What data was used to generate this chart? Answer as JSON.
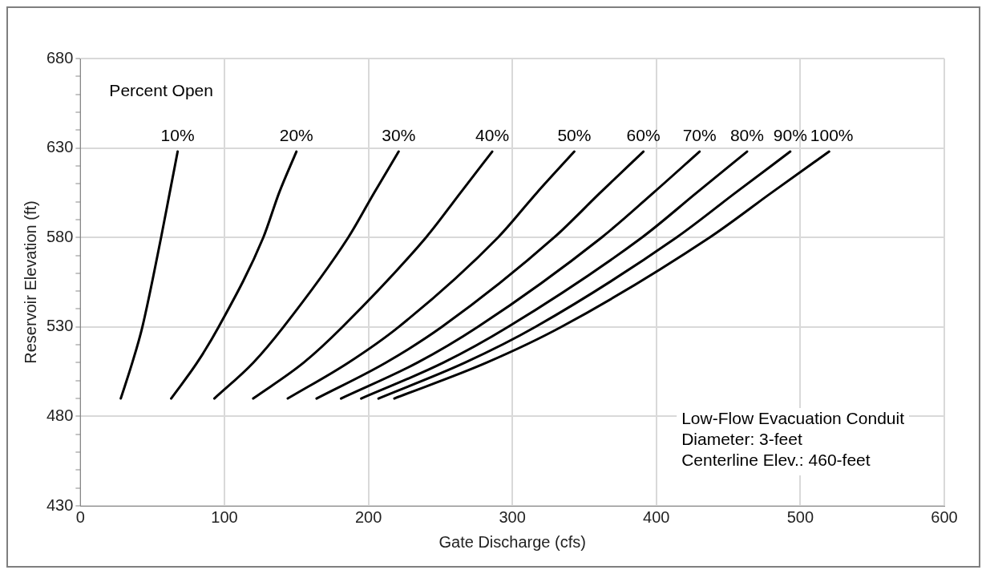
{
  "chart_data": {
    "type": "line",
    "xlabel": "Gate Discharge (cfs)",
    "ylabel": "Reservoir Elevation (ft)",
    "legend_title": "Percent Open",
    "xlim": [
      0,
      600
    ],
    "xticks": [
      0,
      100,
      200,
      300,
      400,
      500,
      600
    ],
    "ylim": [
      430,
      680
    ],
    "yticks": [
      430,
      {
        "value": 440,
        "label": null
      },
      {
        "value": 450,
        "label": null
      },
      {
        "value": 460,
        "label": null
      },
      {
        "value": 470,
        "label": null
      },
      480,
      {
        "value": 490,
        "label": null
      },
      {
        "value": 500,
        "label": null
      },
      {
        "value": 510,
        "label": null
      },
      {
        "value": 520,
        "label": null
      },
      530,
      {
        "value": 540,
        "label": null
      },
      {
        "value": 550,
        "label": null
      },
      {
        "value": 560,
        "label": null
      },
      {
        "value": 570,
        "label": null
      },
      580,
      {
        "value": 590,
        "label": null
      },
      {
        "value": 600,
        "label": null
      },
      {
        "value": 610,
        "label": null
      },
      {
        "value": 620,
        "label": null
      },
      630,
      {
        "value": 640,
        "label": null
      },
      {
        "value": 650,
        "label": null
      },
      {
        "value": 660,
        "label": null
      },
      {
        "value": 670,
        "label": null
      },
      680
    ],
    "grid": true,
    "legend": false,
    "marker": "none",
    "line_style": "solid",
    "annotations": [
      "Low-Flow Evacuation Conduit\nDiameter: 3-feet\nCenterline Elev.: 460-feet"
    ],
    "series": [
      {
        "name": "10%",
        "color": "#000000",
        "values": [
          490,
          510,
          530,
          580,
          605,
          628
        ],
        "x": [
          28,
          36,
          43,
          56,
          62,
          67.5
        ]
      },
      {
        "name": "20%",
        "color": "#000000",
        "values": [
          490,
          510,
          530,
          580,
          605,
          628
        ],
        "x": [
          63,
          81,
          96,
          127,
          138,
          150
        ]
      },
      {
        "name": "30%",
        "color": "#000000",
        "values": [
          490,
          510,
          530,
          580,
          605,
          628
        ],
        "x": [
          93,
          120,
          141,
          186,
          204,
          221
        ]
      },
      {
        "name": "40%",
        "color": "#000000",
        "values": [
          490,
          510,
          530,
          580,
          605,
          628
        ],
        "x": [
          120,
          155,
          182,
          240,
          264,
          286
        ]
      },
      {
        "name": "50%",
        "color": "#000000",
        "values": [
          490,
          510,
          530,
          580,
          605,
          628
        ],
        "x": [
          144,
          186,
          221,
          290,
          317,
          343
        ]
      },
      {
        "name": "60%",
        "color": "#000000",
        "values": [
          490,
          510,
          530,
          580,
          605,
          628
        ],
        "x": [
          164,
          212,
          251,
          329,
          361,
          391
        ]
      },
      {
        "name": "70%",
        "color": "#000000",
        "values": [
          490,
          510,
          530,
          580,
          605,
          628
        ],
        "x": [
          181,
          234,
          276,
          362,
          398,
          430
        ]
      },
      {
        "name": "80%",
        "color": "#000000",
        "values": [
          490,
          510,
          530,
          580,
          605,
          628
        ],
        "x": [
          195,
          252,
          297,
          390,
          428,
          463
        ]
      },
      {
        "name": "90%",
        "color": "#000000",
        "values": [
          490,
          510,
          530,
          580,
          605,
          628
        ],
        "x": [
          207,
          267,
          316,
          414,
          455,
          493
        ]
      },
      {
        "name": "100%",
        "color": "#000000",
        "values": [
          490,
          510,
          530,
          580,
          605,
          628
        ],
        "x": [
          218,
          282,
          334,
          437,
          480,
          520
        ]
      }
    ]
  }
}
